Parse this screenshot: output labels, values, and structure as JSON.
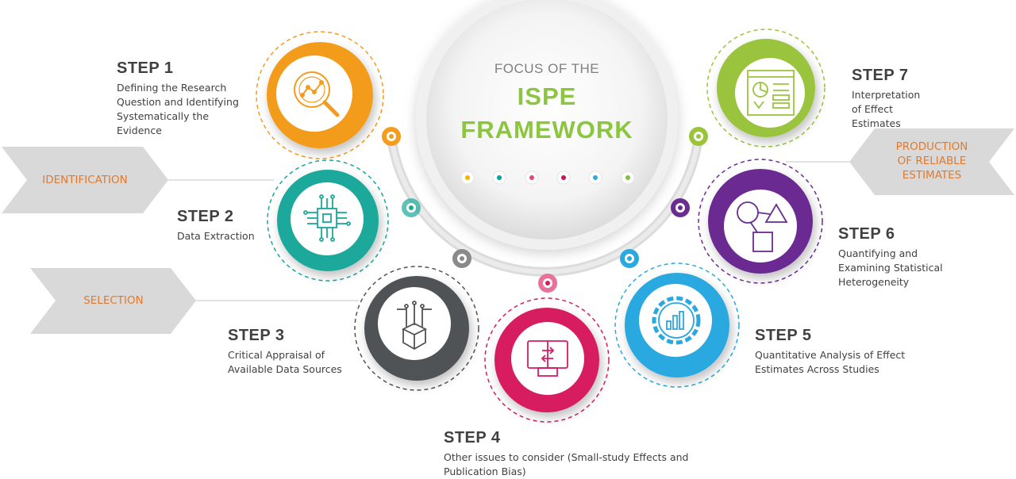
{
  "center": {
    "line1": "FOCUS OF THE",
    "line2": "ISPE",
    "line3": "FRAMEWORK",
    "dot_colors": [
      "#f7b500",
      "#00a3a3",
      "#e8486b",
      "#c2185b",
      "#2aa8e0",
      "#7cc142"
    ]
  },
  "arrows": {
    "identification": "IDENTIFICATION",
    "selection": "SELECTION",
    "production_1": "PRODUCTION",
    "production_2": "OF RELIABLE",
    "production_3": "ESTIMATES"
  },
  "steps": [
    {
      "title": "STEP 1",
      "desc": [
        "Defining the Research",
        "Question and Identifying",
        "Systematically the",
        "Evidence"
      ],
      "color": "#f39c1d",
      "icon": "magnifier-chart-icon"
    },
    {
      "title": "STEP 2",
      "desc": [
        "Data Extraction"
      ],
      "color": "#1aa89a",
      "icon": "chip-circuit-icon"
    },
    {
      "title": "STEP 3",
      "desc": [
        "Critical Appraisal of",
        "Available Data Sources"
      ],
      "color": "#505256",
      "icon": "data-box-icon"
    },
    {
      "title": "STEP 4",
      "desc": [
        "Other issues to consider (Small-study Effects and",
        "Publication Bias)"
      ],
      "color": "#d81b60",
      "icon": "monitor-transfer-icon"
    },
    {
      "title": "STEP 5",
      "desc": [
        "Quantitative Analysis of Effect",
        "Estimates Across Studies"
      ],
      "color": "#2aa8e0",
      "icon": "gear-chart-icon"
    },
    {
      "title": "STEP 6",
      "desc": [
        "Quantifying and",
        "Examining Statistical",
        "Heterogeneity"
      ],
      "color": "#6a2c91",
      "icon": "shapes-icon"
    },
    {
      "title": "STEP 7",
      "desc": [
        "Interpretation",
        "of Effect",
        "Estimates"
      ],
      "color": "#9ac43c",
      "icon": "dashboard-report-icon"
    }
  ]
}
